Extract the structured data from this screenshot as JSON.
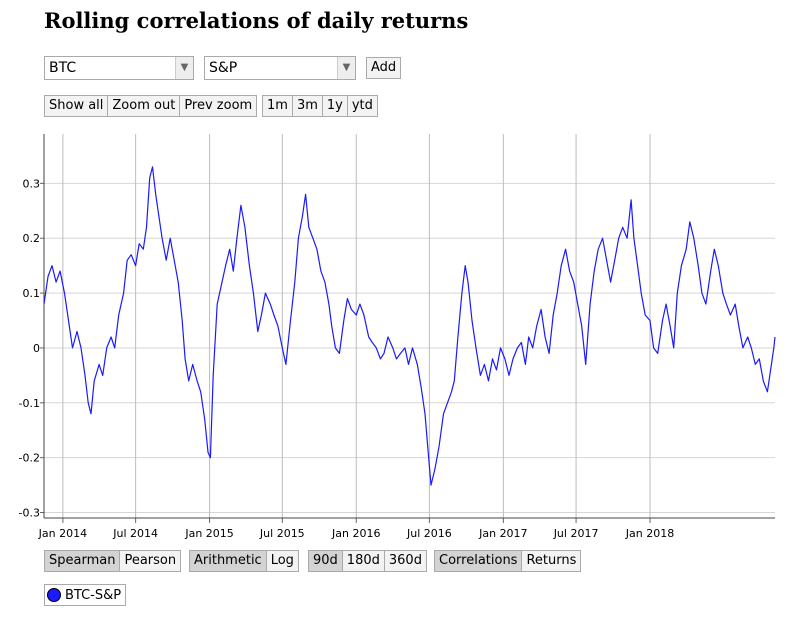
{
  "title": "Rolling correlations of daily returns",
  "asset1": {
    "value": "BTC"
  },
  "asset2": {
    "value": "S&P"
  },
  "add_label": "Add",
  "zoom_buttons": [
    "Show all",
    "Zoom out",
    "Prev zoom"
  ],
  "range_buttons": [
    "1m",
    "3m",
    "1y",
    "ytd"
  ],
  "corr_type": {
    "options": [
      "Spearman",
      "Pearson"
    ],
    "active": "Spearman"
  },
  "scale_type": {
    "options": [
      "Arithmetic",
      "Log"
    ],
    "active": "Arithmetic"
  },
  "window": {
    "options": [
      "90d",
      "180d",
      "360d"
    ],
    "active": "90d"
  },
  "mode": {
    "options": [
      "Correlations",
      "Returns"
    ],
    "active": "Correlations"
  },
  "legend": [
    {
      "label": "BTC-S&P",
      "color": "#1a1aff"
    }
  ],
  "chart_data": {
    "type": "line",
    "title": "",
    "xlabel": "",
    "ylabel": "",
    "xlim": [
      "2013-11-15",
      "2018-11-08"
    ],
    "ylim": [
      -0.31,
      0.39
    ],
    "yticks": [
      -0.3,
      -0.2,
      -0.1,
      0,
      0.1,
      0.2,
      0.3
    ],
    "yticklabels": [
      "-0.3",
      "-0.2",
      "-0.1",
      "0",
      "0.1",
      "0.2",
      "0.3"
    ],
    "xticks": [
      {
        "date": "2014-01-01",
        "label": "Jan 2014"
      },
      {
        "date": "2014-07-01",
        "label": "Jul 2014"
      },
      {
        "date": "2015-01-01",
        "label": "Jan 2015"
      },
      {
        "date": "2015-07-01",
        "label": "Jul 2015"
      },
      {
        "date": "2016-01-01",
        "label": "Jan 2016"
      },
      {
        "date": "2016-07-01",
        "label": "Jul 2016"
      },
      {
        "date": "2017-01-01",
        "label": "Jan 2017"
      },
      {
        "date": "2017-07-01",
        "label": "Jul 2017"
      },
      {
        "date": "2018-01-01",
        "label": "Jan 2018"
      }
    ],
    "grid": true,
    "series": [
      {
        "name": "BTC-S&P",
        "color": "#1a1aff",
        "points": [
          [
            "2013-11-15",
            0.08
          ],
          [
            "2013-11-25",
            0.13
          ],
          [
            "2013-12-05",
            0.15
          ],
          [
            "2013-12-15",
            0.12
          ],
          [
            "2013-12-25",
            0.14
          ],
          [
            "2014-01-05",
            0.1
          ],
          [
            "2014-01-15",
            0.05
          ],
          [
            "2014-01-25",
            0.0
          ],
          [
            "2014-02-05",
            0.03
          ],
          [
            "2014-02-15",
            0.0
          ],
          [
            "2014-02-25",
            -0.05
          ],
          [
            "2014-03-05",
            -0.1
          ],
          [
            "2014-03-12",
            -0.12
          ],
          [
            "2014-03-20",
            -0.06
          ],
          [
            "2014-04-01",
            -0.03
          ],
          [
            "2014-04-10",
            -0.05
          ],
          [
            "2014-04-20",
            0.0
          ],
          [
            "2014-05-01",
            0.02
          ],
          [
            "2014-05-10",
            0.0
          ],
          [
            "2014-05-20",
            0.06
          ],
          [
            "2014-06-01",
            0.1
          ],
          [
            "2014-06-10",
            0.16
          ],
          [
            "2014-06-20",
            0.17
          ],
          [
            "2014-07-01",
            0.15
          ],
          [
            "2014-07-10",
            0.19
          ],
          [
            "2014-07-20",
            0.18
          ],
          [
            "2014-07-28",
            0.22
          ],
          [
            "2014-08-05",
            0.31
          ],
          [
            "2014-08-12",
            0.33
          ],
          [
            "2014-08-20",
            0.28
          ],
          [
            "2014-08-28",
            0.24
          ],
          [
            "2014-09-05",
            0.2
          ],
          [
            "2014-09-15",
            0.16
          ],
          [
            "2014-09-25",
            0.2
          ],
          [
            "2014-10-05",
            0.16
          ],
          [
            "2014-10-15",
            0.12
          ],
          [
            "2014-10-25",
            0.05
          ],
          [
            "2014-11-01",
            -0.02
          ],
          [
            "2014-11-10",
            -0.06
          ],
          [
            "2014-11-20",
            -0.03
          ],
          [
            "2014-12-01",
            -0.06
          ],
          [
            "2014-12-10",
            -0.08
          ],
          [
            "2014-12-20",
            -0.13
          ],
          [
            "2014-12-28",
            -0.19
          ],
          [
            "2015-01-03",
            -0.2
          ],
          [
            "2015-01-10",
            -0.05
          ],
          [
            "2015-01-20",
            0.08
          ],
          [
            "2015-02-01",
            0.12
          ],
          [
            "2015-02-10",
            0.15
          ],
          [
            "2015-02-20",
            0.18
          ],
          [
            "2015-03-01",
            0.14
          ],
          [
            "2015-03-10",
            0.2
          ],
          [
            "2015-03-20",
            0.26
          ],
          [
            "2015-03-30",
            0.22
          ],
          [
            "2015-04-10",
            0.15
          ],
          [
            "2015-04-20",
            0.1
          ],
          [
            "2015-05-01",
            0.03
          ],
          [
            "2015-05-10",
            0.06
          ],
          [
            "2015-05-20",
            0.1
          ],
          [
            "2015-06-01",
            0.08
          ],
          [
            "2015-06-10",
            0.06
          ],
          [
            "2015-06-20",
            0.04
          ],
          [
            "2015-07-01",
            0.0
          ],
          [
            "2015-07-10",
            -0.03
          ],
          [
            "2015-07-20",
            0.04
          ],
          [
            "2015-08-01",
            0.12
          ],
          [
            "2015-08-10",
            0.2
          ],
          [
            "2015-08-20",
            0.24
          ],
          [
            "2015-08-28",
            0.28
          ],
          [
            "2015-09-05",
            0.22
          ],
          [
            "2015-09-15",
            0.2
          ],
          [
            "2015-09-25",
            0.18
          ],
          [
            "2015-10-05",
            0.14
          ],
          [
            "2015-10-15",
            0.12
          ],
          [
            "2015-10-25",
            0.08
          ],
          [
            "2015-11-01",
            0.04
          ],
          [
            "2015-11-10",
            0.0
          ],
          [
            "2015-11-20",
            -0.01
          ],
          [
            "2015-12-01",
            0.05
          ],
          [
            "2015-12-10",
            0.09
          ],
          [
            "2015-12-20",
            0.07
          ],
          [
            "2016-01-01",
            0.06
          ],
          [
            "2016-01-10",
            0.08
          ],
          [
            "2016-01-20",
            0.06
          ],
          [
            "2016-02-01",
            0.02
          ],
          [
            "2016-02-10",
            0.01
          ],
          [
            "2016-02-20",
            0.0
          ],
          [
            "2016-03-01",
            -0.02
          ],
          [
            "2016-03-10",
            -0.01
          ],
          [
            "2016-03-20",
            0.02
          ],
          [
            "2016-04-01",
            0.0
          ],
          [
            "2016-04-10",
            -0.02
          ],
          [
            "2016-04-20",
            -0.01
          ],
          [
            "2016-05-01",
            0.0
          ],
          [
            "2016-05-10",
            -0.03
          ],
          [
            "2016-05-20",
            0.0
          ],
          [
            "2016-06-01",
            -0.03
          ],
          [
            "2016-06-10",
            -0.07
          ],
          [
            "2016-06-20",
            -0.12
          ],
          [
            "2016-06-28",
            -0.19
          ],
          [
            "2016-07-05",
            -0.25
          ],
          [
            "2016-07-15",
            -0.22
          ],
          [
            "2016-07-25",
            -0.18
          ],
          [
            "2016-08-05",
            -0.12
          ],
          [
            "2016-08-15",
            -0.1
          ],
          [
            "2016-08-25",
            -0.08
          ],
          [
            "2016-09-01",
            -0.06
          ],
          [
            "2016-09-10",
            0.02
          ],
          [
            "2016-09-20",
            0.1
          ],
          [
            "2016-09-28",
            0.15
          ],
          [
            "2016-10-05",
            0.12
          ],
          [
            "2016-10-15",
            0.05
          ],
          [
            "2016-10-25",
            0.0
          ],
          [
            "2016-11-05",
            -0.05
          ],
          [
            "2016-11-15",
            -0.03
          ],
          [
            "2016-11-25",
            -0.06
          ],
          [
            "2016-12-05",
            -0.02
          ],
          [
            "2016-12-15",
            -0.04
          ],
          [
            "2016-12-25",
            0.0
          ],
          [
            "2017-01-05",
            -0.02
          ],
          [
            "2017-01-15",
            -0.05
          ],
          [
            "2017-01-25",
            -0.02
          ],
          [
            "2017-02-05",
            0.0
          ],
          [
            "2017-02-15",
            0.01
          ],
          [
            "2017-02-25",
            -0.03
          ],
          [
            "2017-03-05",
            0.02
          ],
          [
            "2017-03-15",
            0.0
          ],
          [
            "2017-03-25",
            0.04
          ],
          [
            "2017-04-05",
            0.07
          ],
          [
            "2017-04-15",
            0.02
          ],
          [
            "2017-04-25",
            -0.01
          ],
          [
            "2017-05-05",
            0.06
          ],
          [
            "2017-05-15",
            0.1
          ],
          [
            "2017-05-25",
            0.15
          ],
          [
            "2017-06-05",
            0.18
          ],
          [
            "2017-06-15",
            0.14
          ],
          [
            "2017-06-25",
            0.12
          ],
          [
            "2017-07-05",
            0.08
          ],
          [
            "2017-07-15",
            0.04
          ],
          [
            "2017-07-25",
            -0.03
          ],
          [
            "2017-08-05",
            0.08
          ],
          [
            "2017-08-15",
            0.14
          ],
          [
            "2017-08-25",
            0.18
          ],
          [
            "2017-09-05",
            0.2
          ],
          [
            "2017-09-15",
            0.16
          ],
          [
            "2017-09-25",
            0.12
          ],
          [
            "2017-10-05",
            0.16
          ],
          [
            "2017-10-15",
            0.2
          ],
          [
            "2017-10-25",
            0.22
          ],
          [
            "2017-11-05",
            0.2
          ],
          [
            "2017-11-15",
            0.27
          ],
          [
            "2017-11-22",
            0.2
          ],
          [
            "2017-12-01",
            0.15
          ],
          [
            "2017-12-10",
            0.1
          ],
          [
            "2017-12-20",
            0.06
          ],
          [
            "2018-01-01",
            0.05
          ],
          [
            "2018-01-10",
            0.0
          ],
          [
            "2018-01-20",
            -0.01
          ],
          [
            "2018-02-01",
            0.05
          ],
          [
            "2018-02-10",
            0.08
          ],
          [
            "2018-02-20",
            0.04
          ],
          [
            "2018-03-01",
            0.0
          ],
          [
            "2018-03-10",
            0.1
          ],
          [
            "2018-03-20",
            0.15
          ],
          [
            "2018-04-01",
            0.18
          ],
          [
            "2018-04-10",
            0.23
          ],
          [
            "2018-04-20",
            0.2
          ],
          [
            "2018-05-01",
            0.15
          ],
          [
            "2018-05-10",
            0.1
          ],
          [
            "2018-05-20",
            0.08
          ],
          [
            "2018-06-01",
            0.14
          ],
          [
            "2018-06-10",
            0.18
          ],
          [
            "2018-06-20",
            0.15
          ],
          [
            "2018-07-01",
            0.1
          ],
          [
            "2018-07-10",
            0.08
          ],
          [
            "2018-07-20",
            0.06
          ],
          [
            "2018-08-01",
            0.08
          ],
          [
            "2018-08-10",
            0.04
          ],
          [
            "2018-08-20",
            0.0
          ],
          [
            "2018-09-01",
            0.02
          ],
          [
            "2018-09-10",
            0.0
          ],
          [
            "2018-09-20",
            -0.03
          ],
          [
            "2018-09-30",
            -0.02
          ],
          [
            "2018-10-10",
            -0.06
          ],
          [
            "2018-10-20",
            -0.08
          ],
          [
            "2018-10-28",
            -0.04
          ],
          [
            "2018-11-05",
            0.0
          ],
          [
            "2018-11-08",
            0.02
          ]
        ]
      }
    ]
  }
}
